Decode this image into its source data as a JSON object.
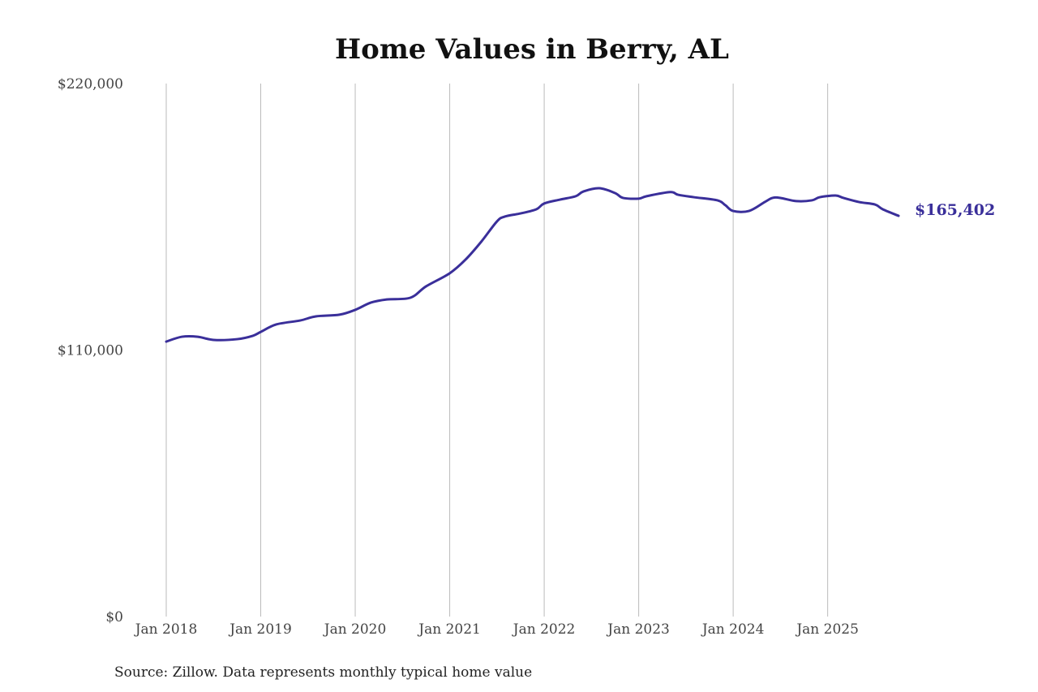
{
  "chart_data": {
    "type": "line",
    "title": "Home Values in Berry, AL",
    "xlabel": "",
    "ylabel": "",
    "ylim": [
      0,
      220000
    ],
    "xlim": [
      "2018-01",
      "2025-10"
    ],
    "yticks": [
      {
        "value": 0,
        "label": "$0"
      },
      {
        "value": 110000,
        "label": "$110,000"
      },
      {
        "value": 220000,
        "label": "$220,000"
      }
    ],
    "xticks": [
      {
        "date": "2018-01",
        "label": "Jan 2018"
      },
      {
        "date": "2019-01",
        "label": "Jan 2019"
      },
      {
        "date": "2020-01",
        "label": "Jan 2020"
      },
      {
        "date": "2021-01",
        "label": "Jan 2021"
      },
      {
        "date": "2022-01",
        "label": "Jan 2022"
      },
      {
        "date": "2023-01",
        "label": "Jan 2023"
      },
      {
        "date": "2024-01",
        "label": "Jan 2024"
      },
      {
        "date": "2025-01",
        "label": "Jan 2025"
      }
    ],
    "grid": "vertical",
    "series": [
      {
        "name": "Typical home value",
        "color": "#3a2f9a",
        "points": [
          [
            "2018-01",
            113500
          ],
          [
            "2018-03",
            115500
          ],
          [
            "2018-05",
            115500
          ],
          [
            "2018-07",
            114200
          ],
          [
            "2018-10",
            114500
          ],
          [
            "2018-12",
            115900
          ],
          [
            "2019-01",
            117500
          ],
          [
            "2019-03",
            120600
          ],
          [
            "2019-06",
            122200
          ],
          [
            "2019-08",
            123900
          ],
          [
            "2019-11",
            124600
          ],
          [
            "2020-01",
            126600
          ],
          [
            "2020-03",
            129600
          ],
          [
            "2020-05",
            130900
          ],
          [
            "2020-08",
            131600
          ],
          [
            "2020-10",
            136300
          ],
          [
            "2021-01",
            141700
          ],
          [
            "2021-03",
            147300
          ],
          [
            "2021-05",
            154700
          ],
          [
            "2021-07",
            163100
          ],
          [
            "2021-08",
            165100
          ],
          [
            "2021-10",
            166400
          ],
          [
            "2021-12",
            168100
          ],
          [
            "2022-01",
            170500
          ],
          [
            "2022-03",
            172100
          ],
          [
            "2022-05",
            173500
          ],
          [
            "2022-06",
            175500
          ],
          [
            "2022-08",
            176800
          ],
          [
            "2022-10",
            174800
          ],
          [
            "2022-11",
            172800
          ],
          [
            "2023-01",
            172500
          ],
          [
            "2023-02",
            173500
          ],
          [
            "2023-05",
            175200
          ],
          [
            "2023-06",
            174100
          ],
          [
            "2023-08",
            173100
          ],
          [
            "2023-11",
            171800
          ],
          [
            "2023-12",
            169800
          ],
          [
            "2024-01",
            167400
          ],
          [
            "2024-03",
            167400
          ],
          [
            "2024-05",
            171100
          ],
          [
            "2024-06",
            172800
          ],
          [
            "2024-07",
            172800
          ],
          [
            "2024-09",
            171500
          ],
          [
            "2024-11",
            171800
          ],
          [
            "2024-12",
            173100
          ],
          [
            "2025-02",
            173800
          ],
          [
            "2025-03",
            172800
          ],
          [
            "2025-05",
            171100
          ],
          [
            "2025-07",
            170100
          ],
          [
            "2025-08",
            168100
          ],
          [
            "2025-10",
            165402
          ]
        ]
      }
    ],
    "end_label": "$165,402",
    "source": "Source: Zillow. Data represents monthly typical home value"
  }
}
